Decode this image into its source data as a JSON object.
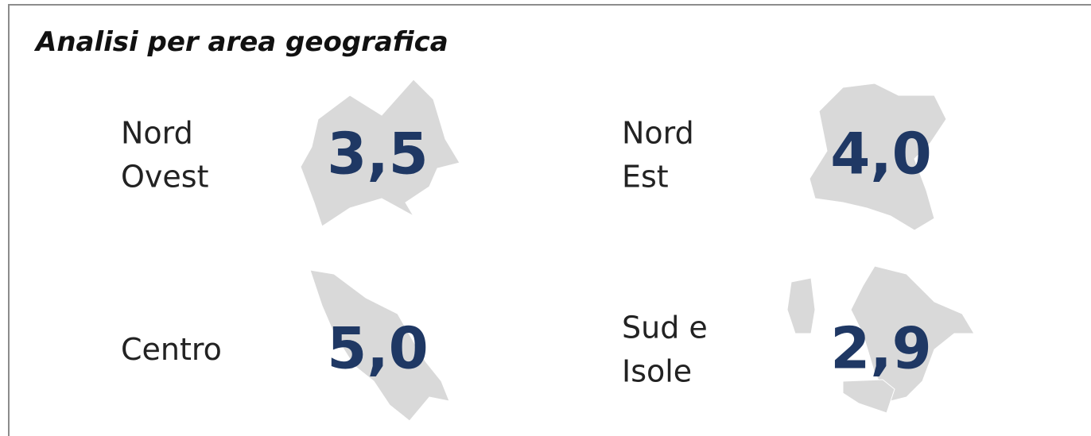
{
  "title": "Analisi per area geografica",
  "regions": [
    {
      "name_lines": [
        "Nord",
        "Ovest"
      ],
      "value": "3,5"
    },
    {
      "name_lines": [
        "Nord",
        "Est"
      ],
      "value": "4,0"
    },
    {
      "name_lines": [
        "Centro"
      ],
      "value": "5,0"
    },
    {
      "name_lines": [
        "Sud e",
        "Isole"
      ],
      "value": "2,9"
    }
  ]
}
